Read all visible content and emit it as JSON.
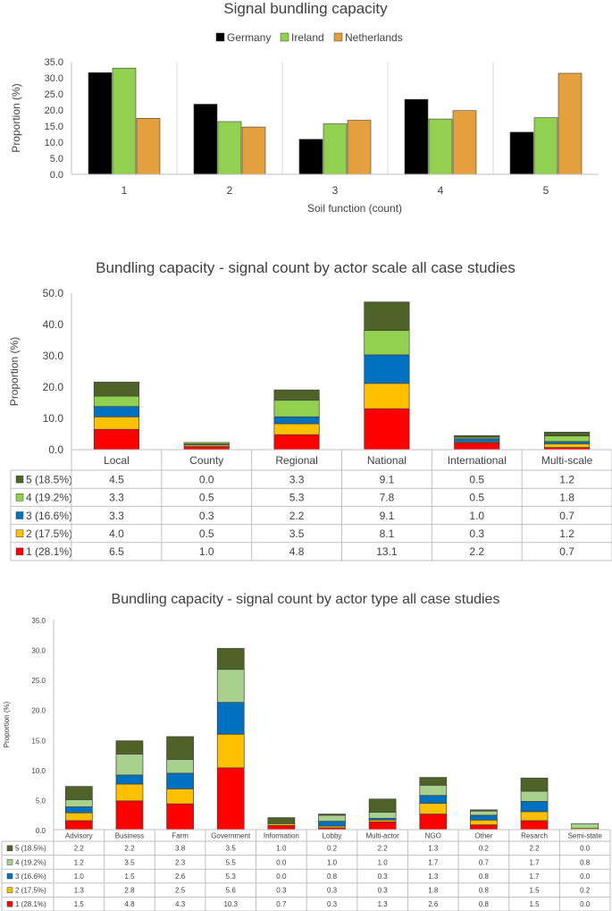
{
  "chart_data": [
    {
      "type": "bar",
      "title": "Signal bundling capacity",
      "xlabel": "Soil function (count)",
      "ylabel": "Proportion (%)",
      "ylim": [
        0,
        35
      ],
      "yticks": [
        "0.0",
        "5.0",
        "10.0",
        "15.0",
        "20.0",
        "25.0",
        "30.0",
        "35.0"
      ],
      "categories": [
        "1",
        "2",
        "3",
        "4",
        "5"
      ],
      "legend_position": "top",
      "series": [
        {
          "name": "Germany",
          "color": "#000000",
          "values": [
            31.6,
            21.8,
            10.9,
            23.3,
            13.1
          ]
        },
        {
          "name": "Ireland",
          "color": "#92d050",
          "values": [
            33.0,
            16.4,
            15.7,
            17.2,
            17.6
          ]
        },
        {
          "name": "Netherlands",
          "color": "#e3a03c",
          "values": [
            17.4,
            14.7,
            16.8,
            19.8,
            31.4
          ]
        }
      ]
    },
    {
      "type": "bar",
      "stacked": true,
      "title": "Bundling capacity - signal count by actor scale all case studies",
      "ylabel": "Proportion (%)",
      "ylim": [
        0,
        50
      ],
      "yticks": [
        "0.0",
        "10.0",
        "20.0",
        "30.0",
        "40.0",
        "50.0"
      ],
      "categories": [
        "Local",
        "County",
        "Regional",
        "National",
        "International",
        "Multi-scale"
      ],
      "series": [
        {
          "name": "1 (28.1%)",
          "color": "#ff0000",
          "values": [
            "6.5",
            "1.0",
            "4.8",
            "13.1",
            "2.2",
            "0.7"
          ]
        },
        {
          "name": "2 (17.5%)",
          "color": "#ffc000",
          "values": [
            "4.0",
            "0.5",
            "3.5",
            "8.1",
            "0.3",
            "1.2"
          ]
        },
        {
          "name": "3 (16.6%)",
          "color": "#0070c0",
          "values": [
            "3.3",
            "0.3",
            "2.2",
            "9.1",
            "1.0",
            "0.7"
          ]
        },
        {
          "name": "4 (19.2%)",
          "color": "#92d050",
          "values": [
            "3.3",
            "0.5",
            "5.3",
            "7.8",
            "0.5",
            "1.8"
          ]
        },
        {
          "name": "5 (18.5%)",
          "color": "#4f6228",
          "values": [
            "4.5",
            "0.0",
            "3.3",
            "9.1",
            "0.5",
            "1.2"
          ]
        }
      ]
    },
    {
      "type": "bar",
      "stacked": true,
      "title": "Bundling capacity - signal count by actor type all case studies",
      "ylabel": "Proportion (%)",
      "ylim": [
        0,
        35
      ],
      "yticks": [
        "0.0",
        "5.0",
        "10.0",
        "15.0",
        "20.0",
        "25.0",
        "30.0",
        "35.0"
      ],
      "categories": [
        "Advisory",
        "Business",
        "Farm",
        "Government",
        "Information",
        "Lobby",
        "Multi-actor",
        "NGO",
        "Other",
        "Resarch",
        "Semi-state"
      ],
      "series": [
        {
          "name": "1 (28.1%)",
          "color": "#ff0000",
          "values": [
            "1.5",
            "4.8",
            "4.3",
            "10.3",
            "0.7",
            "0.3",
            "1.3",
            "2.6",
            "0.8",
            "1.5",
            "0.0"
          ]
        },
        {
          "name": "2 (17.5%)",
          "color": "#ffc000",
          "values": [
            "1.3",
            "2.8",
            "2.5",
            "5.6",
            "0.3",
            "0.3",
            "0.3",
            "1.8",
            "0.8",
            "1.5",
            "0.2"
          ]
        },
        {
          "name": "3 (16.6%)",
          "color": "#0070c0",
          "values": [
            "1.0",
            "1.5",
            "2.6",
            "5.3",
            "0.0",
            "0.8",
            "0.3",
            "1.3",
            "0.8",
            "1.7",
            "0.0"
          ]
        },
        {
          "name": "4 (19.2%)",
          "color": "#a9d18e",
          "values": [
            "1.2",
            "3.5",
            "2.3",
            "5.5",
            "0.0",
            "1.0",
            "1.0",
            "1.7",
            "0.7",
            "1.7",
            "0.8"
          ]
        },
        {
          "name": "5 (18.5%)",
          "color": "#4f6228",
          "values": [
            "2.2",
            "2.2",
            "3.8",
            "3.5",
            "1.0",
            "0.2",
            "2.2",
            "1.3",
            "0.2",
            "2.2",
            "0.0"
          ]
        }
      ]
    }
  ]
}
